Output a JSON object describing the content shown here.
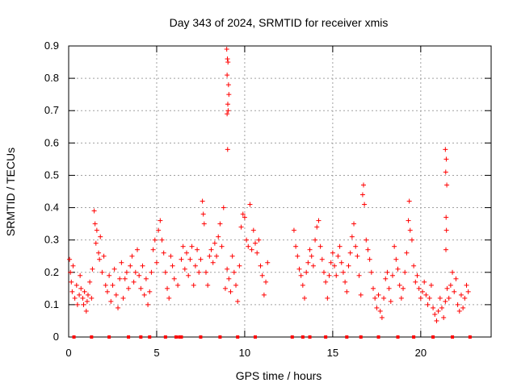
{
  "chart_data": {
    "type": "scatter",
    "title": "Day 343 of 2024, SRMTID for receiver xmis",
    "xlabel": "GPS time / hours",
    "ylabel": "SRMTID / TECUs",
    "xlim": [
      0,
      24
    ],
    "ylim": [
      0,
      0.9
    ],
    "xticks": [
      0,
      5,
      10,
      15,
      20
    ],
    "xtick_labels": [
      "0",
      "5",
      "10",
      "15",
      "20"
    ],
    "yticks": [
      0,
      0.1,
      0.2,
      0.3,
      0.4,
      0.5,
      0.6,
      0.7,
      0.8,
      0.9
    ],
    "ytick_labels": [
      "0",
      "0.1",
      "0.2",
      "0.3",
      "0.4",
      "0.5",
      "0.6",
      "0.7",
      "0.8",
      "0.9"
    ],
    "grid": true,
    "marker": "plus",
    "series_color": "#ff0000",
    "points": [
      [
        0.05,
        0.24
      ],
      [
        0.1,
        0.2
      ],
      [
        0.15,
        0.17
      ],
      [
        0.2,
        0.14
      ],
      [
        0.25,
        0.22
      ],
      [
        0.35,
        0.12
      ],
      [
        0.45,
        0.16
      ],
      [
        0.5,
        0.1
      ],
      [
        0.6,
        0.13
      ],
      [
        0.65,
        0.19
      ],
      [
        0.7,
        0.15
      ],
      [
        0.8,
        0.12
      ],
      [
        0.85,
        0.1
      ],
      [
        0.9,
        0.14
      ],
      [
        1.0,
        0.08
      ],
      [
        1.05,
        0.11
      ],
      [
        1.1,
        0.13
      ],
      [
        1.2,
        0.17
      ],
      [
        1.3,
        0.12
      ],
      [
        1.35,
        0.21
      ],
      [
        1.45,
        0.39
      ],
      [
        1.5,
        0.35
      ],
      [
        1.55,
        0.29
      ],
      [
        1.6,
        0.33
      ],
      [
        1.7,
        0.26
      ],
      [
        1.75,
        0.24
      ],
      [
        1.8,
        0.31
      ],
      [
        1.9,
        0.2
      ],
      [
        2.0,
        0.25
      ],
      [
        2.1,
        0.16
      ],
      [
        2.2,
        0.14
      ],
      [
        2.3,
        0.19
      ],
      [
        2.4,
        0.11
      ],
      [
        2.5,
        0.16
      ],
      [
        2.6,
        0.21
      ],
      [
        2.7,
        0.13
      ],
      [
        2.8,
        0.09
      ],
      [
        2.9,
        0.18
      ],
      [
        3.0,
        0.23
      ],
      [
        3.1,
        0.12
      ],
      [
        3.2,
        0.18
      ],
      [
        3.3,
        0.2
      ],
      [
        3.4,
        0.15
      ],
      [
        3.5,
        0.22
      ],
      [
        3.6,
        0.25
      ],
      [
        3.7,
        0.17
      ],
      [
        3.8,
        0.2
      ],
      [
        3.9,
        0.27
      ],
      [
        4.0,
        0.19
      ],
      [
        4.1,
        0.15
      ],
      [
        4.2,
        0.22
      ],
      [
        4.3,
        0.13
      ],
      [
        4.4,
        0.18
      ],
      [
        4.5,
        0.1
      ],
      [
        4.6,
        0.14
      ],
      [
        4.7,
        0.2
      ],
      [
        4.8,
        0.27
      ],
      [
        4.9,
        0.3
      ],
      [
        5.0,
        0.23
      ],
      [
        5.1,
        0.33
      ],
      [
        5.2,
        0.36
      ],
      [
        5.3,
        0.3
      ],
      [
        5.4,
        0.26
      ],
      [
        5.5,
        0.2
      ],
      [
        5.6,
        0.15
      ],
      [
        5.7,
        0.12
      ],
      [
        5.8,
        0.25
      ],
      [
        5.9,
        0.22
      ],
      [
        6.0,
        0.18
      ],
      [
        6.2,
        0.16
      ],
      [
        6.4,
        0.24
      ],
      [
        6.5,
        0.28
      ],
      [
        6.6,
        0.21
      ],
      [
        6.7,
        0.26
      ],
      [
        6.8,
        0.19
      ],
      [
        6.9,
        0.24
      ],
      [
        7.0,
        0.28
      ],
      [
        7.1,
        0.16
      ],
      [
        7.2,
        0.22
      ],
      [
        7.3,
        0.27
      ],
      [
        7.4,
        0.2
      ],
      [
        7.5,
        0.24
      ],
      [
        7.6,
        0.42
      ],
      [
        7.65,
        0.38
      ],
      [
        7.7,
        0.35
      ],
      [
        7.8,
        0.2
      ],
      [
        7.9,
        0.16
      ],
      [
        8.0,
        0.25
      ],
      [
        8.1,
        0.27
      ],
      [
        8.2,
        0.23
      ],
      [
        8.3,
        0.29
      ],
      [
        8.4,
        0.25
      ],
      [
        8.5,
        0.31
      ],
      [
        8.6,
        0.35
      ],
      [
        8.7,
        0.28
      ],
      [
        8.8,
        0.4
      ],
      [
        8.9,
        0.15
      ],
      [
        9.0,
        0.21
      ],
      [
        9.1,
        0.18
      ],
      [
        9.2,
        0.14
      ],
      [
        9.3,
        0.25
      ],
      [
        9.4,
        0.2
      ],
      [
        9.5,
        0.16
      ],
      [
        9.6,
        0.11
      ],
      [
        9.7,
        0.22
      ],
      [
        9.8,
        0.34
      ],
      [
        9.9,
        0.38
      ],
      [
        10.0,
        0.37
      ],
      [
        10.1,
        0.3
      ],
      [
        10.2,
        0.28
      ],
      [
        10.3,
        0.41
      ],
      [
        10.4,
        0.27
      ],
      [
        10.5,
        0.33
      ],
      [
        10.6,
        0.29
      ],
      [
        10.7,
        0.26
      ],
      [
        10.8,
        0.3
      ],
      [
        10.9,
        0.22
      ],
      [
        11.0,
        0.19
      ],
      [
        11.1,
        0.13
      ],
      [
        11.2,
        0.17
      ],
      [
        11.3,
        0.23
      ],
      [
        12.8,
        0.33
      ],
      [
        12.9,
        0.28
      ],
      [
        13.0,
        0.25
      ],
      [
        13.1,
        0.21
      ],
      [
        13.2,
        0.19
      ],
      [
        13.3,
        0.16
      ],
      [
        13.4,
        0.12
      ],
      [
        13.5,
        0.2
      ],
      [
        13.6,
        0.23
      ],
      [
        13.7,
        0.27
      ],
      [
        13.8,
        0.25
      ],
      [
        13.9,
        0.22
      ],
      [
        14.0,
        0.3
      ],
      [
        14.1,
        0.34
      ],
      [
        14.2,
        0.36
      ],
      [
        14.3,
        0.28
      ],
      [
        14.4,
        0.24
      ],
      [
        14.5,
        0.2
      ],
      [
        14.6,
        0.17
      ],
      [
        14.7,
        0.12
      ],
      [
        14.8,
        0.19
      ],
      [
        14.9,
        0.23
      ],
      [
        15.0,
        0.26
      ],
      [
        15.1,
        0.22
      ],
      [
        15.2,
        0.19
      ],
      [
        15.3,
        0.25
      ],
      [
        15.4,
        0.28
      ],
      [
        15.5,
        0.23
      ],
      [
        15.6,
        0.2
      ],
      [
        15.7,
        0.17
      ],
      [
        15.8,
        0.14
      ],
      [
        15.9,
        0.22
      ],
      [
        16.0,
        0.26
      ],
      [
        16.1,
        0.31
      ],
      [
        16.2,
        0.35
      ],
      [
        16.3,
        0.28
      ],
      [
        16.4,
        0.25
      ],
      [
        16.5,
        0.19
      ],
      [
        16.6,
        0.13
      ],
      [
        16.7,
        0.44
      ],
      [
        16.75,
        0.47
      ],
      [
        16.8,
        0.41
      ],
      [
        16.9,
        0.3
      ],
      [
        17.0,
        0.27
      ],
      [
        17.1,
        0.24
      ],
      [
        17.2,
        0.2
      ],
      [
        17.3,
        0.15
      ],
      [
        17.4,
        0.12
      ],
      [
        17.5,
        0.09
      ],
      [
        17.6,
        0.13
      ],
      [
        17.7,
        0.08
      ],
      [
        17.8,
        0.06
      ],
      [
        17.9,
        0.12
      ],
      [
        18.0,
        0.18
      ],
      [
        18.1,
        0.2
      ],
      [
        18.2,
        0.15
      ],
      [
        18.3,
        0.11
      ],
      [
        18.4,
        0.19
      ],
      [
        18.5,
        0.28
      ],
      [
        18.6,
        0.24
      ],
      [
        18.7,
        0.21
      ],
      [
        18.8,
        0.16
      ],
      [
        18.9,
        0.12
      ],
      [
        19.0,
        0.15
      ],
      [
        19.1,
        0.2
      ],
      [
        19.2,
        0.26
      ],
      [
        19.3,
        0.36
      ],
      [
        19.35,
        0.42
      ],
      [
        19.4,
        0.33
      ],
      [
        19.5,
        0.3
      ],
      [
        19.6,
        0.22
      ],
      [
        19.7,
        0.17
      ],
      [
        19.8,
        0.19
      ],
      [
        19.9,
        0.15
      ],
      [
        20.0,
        0.12
      ],
      [
        20.1,
        0.14
      ],
      [
        20.2,
        0.17
      ],
      [
        20.3,
        0.13
      ],
      [
        20.4,
        0.1
      ],
      [
        20.5,
        0.12
      ],
      [
        20.6,
        0.16
      ],
      [
        20.7,
        0.09
      ],
      [
        20.8,
        0.07
      ],
      [
        20.9,
        0.05
      ],
      [
        21.0,
        0.08
      ],
      [
        21.1,
        0.12
      ],
      [
        21.2,
        0.09
      ],
      [
        21.3,
        0.06
      ],
      [
        21.4,
        0.11
      ],
      [
        21.5,
        0.15
      ],
      [
        21.6,
        0.12
      ],
      [
        21.7,
        0.16
      ],
      [
        21.8,
        0.2
      ],
      [
        21.9,
        0.14
      ],
      [
        22.0,
        0.18
      ],
      [
        22.1,
        0.1
      ],
      [
        22.2,
        0.08
      ],
      [
        22.3,
        0.13
      ],
      [
        22.4,
        0.09
      ],
      [
        22.5,
        0.12
      ],
      [
        22.6,
        0.16
      ],
      [
        22.7,
        0.14
      ],
      [
        8.98,
        0.89
      ],
      [
        9.02,
        0.86
      ],
      [
        9.05,
        0.85
      ],
      [
        9.0,
        0.81
      ],
      [
        9.08,
        0.78
      ],
      [
        9.1,
        0.75
      ],
      [
        9.04,
        0.72
      ],
      [
        9.06,
        0.7
      ],
      [
        9.0,
        0.69
      ],
      [
        9.03,
        0.58
      ],
      [
        21.4,
        0.58
      ],
      [
        21.45,
        0.55
      ],
      [
        21.42,
        0.51
      ],
      [
        21.48,
        0.47
      ],
      [
        21.44,
        0.37
      ],
      [
        21.46,
        0.33
      ],
      [
        21.43,
        0.27
      ]
    ],
    "zero_points_x": [
      0.3,
      1.3,
      2.3,
      3.4,
      4.1,
      4.6,
      5.5,
      6.1,
      6.3,
      6.4,
      7.5,
      8.6,
      9.6,
      10.6,
      12.7,
      13.3,
      13.7,
      14.6,
      15.8,
      16.6,
      17.6,
      18.7,
      19.6,
      20.7,
      21.8,
      22.8
    ]
  }
}
